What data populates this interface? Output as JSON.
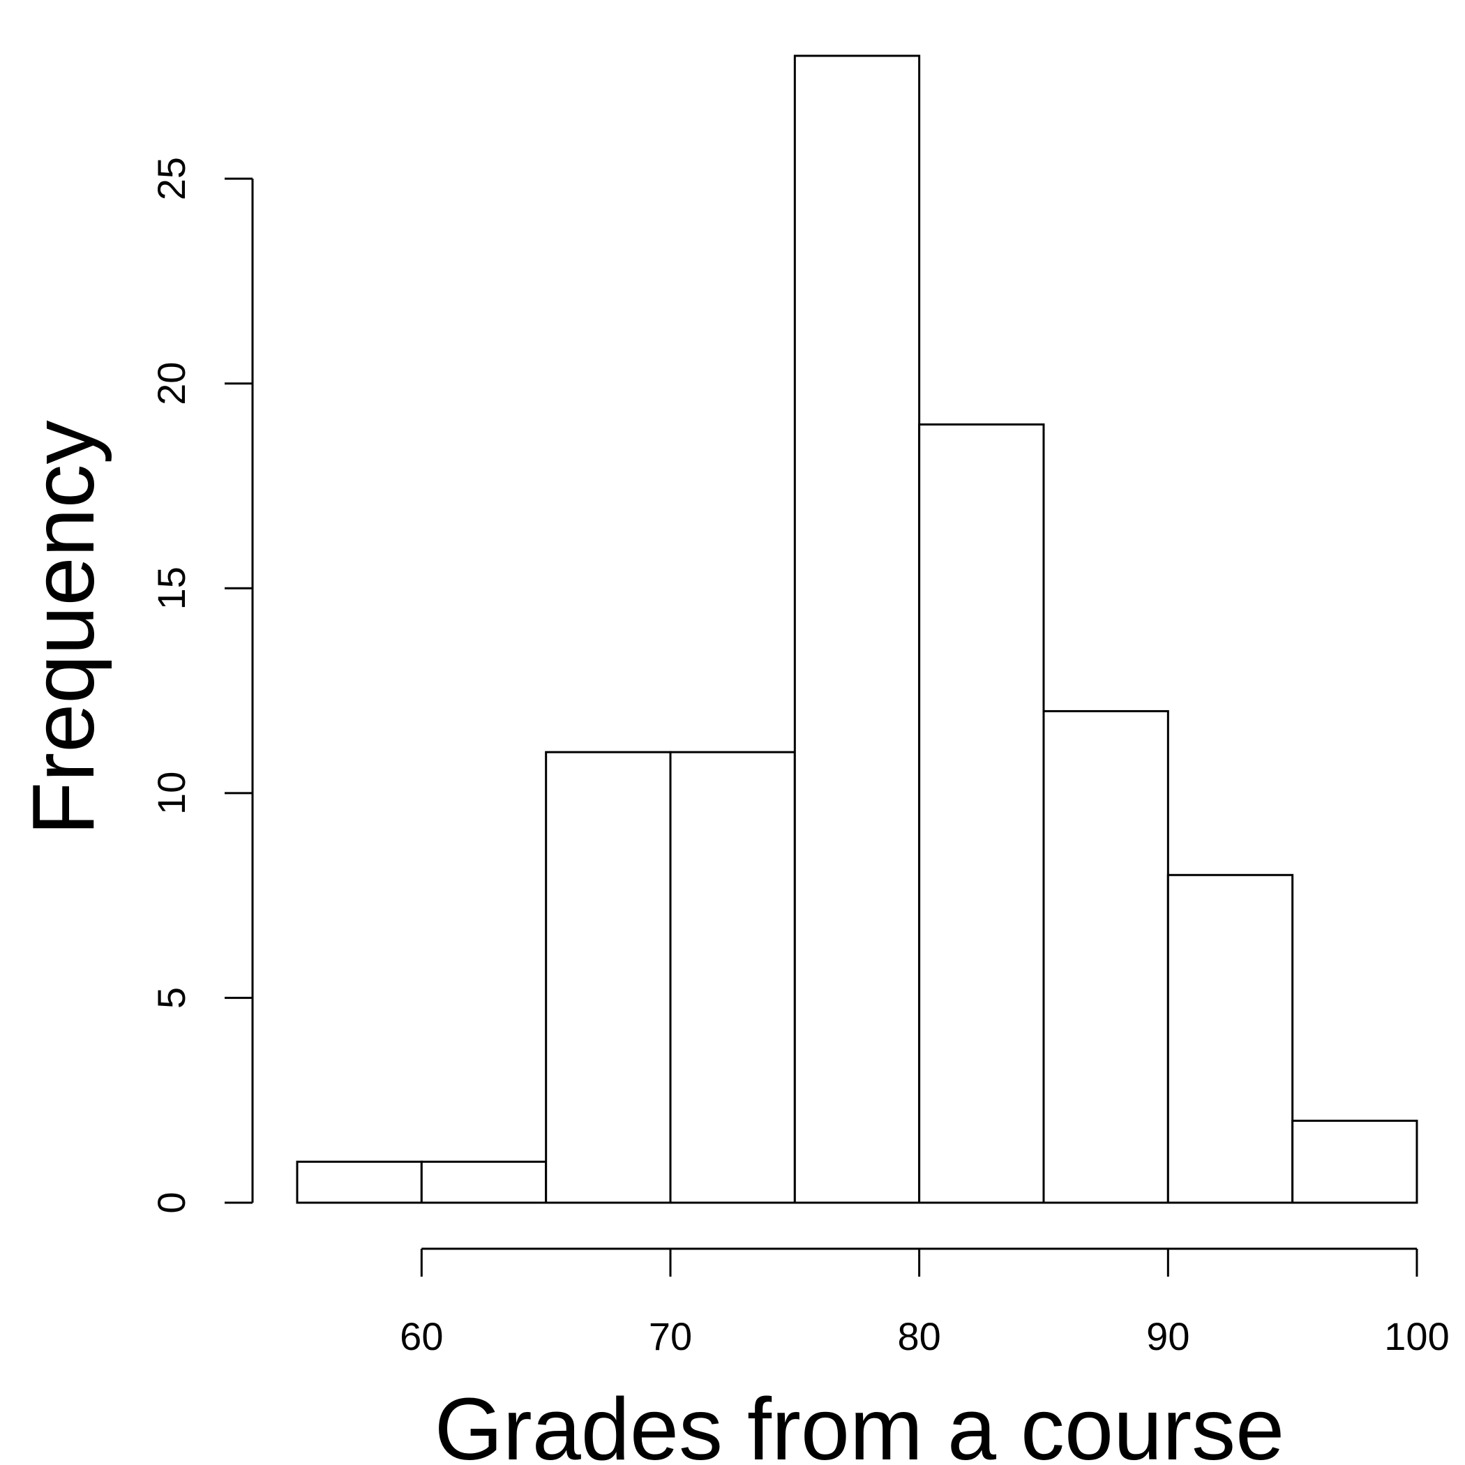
{
  "chart_data": {
    "type": "bar",
    "histogram": true,
    "bins": [
      {
        "from": 55,
        "to": 60,
        "count": 1
      },
      {
        "from": 60,
        "to": 65,
        "count": 1
      },
      {
        "from": 65,
        "to": 70,
        "count": 11
      },
      {
        "from": 70,
        "to": 75,
        "count": 11
      },
      {
        "from": 75,
        "to": 80,
        "count": 28
      },
      {
        "from": 80,
        "to": 85,
        "count": 19
      },
      {
        "from": 85,
        "to": 90,
        "count": 12
      },
      {
        "from": 90,
        "to": 95,
        "count": 8
      },
      {
        "from": 95,
        "to": 100,
        "count": 2
      }
    ],
    "title": "",
    "xlabel": "Grades from a course",
    "ylabel": "Frequency",
    "xlim": [
      55,
      100
    ],
    "ylim": [
      0,
      28
    ],
    "x_ticks": [
      60,
      70,
      80,
      90,
      100
    ],
    "x_tick_labels": [
      "60",
      "70",
      "80",
      "90",
      "100"
    ],
    "y_ticks": [
      0,
      5,
      10,
      15,
      20,
      25
    ],
    "y_tick_labels": [
      "0",
      "5",
      "10",
      "15",
      "20",
      "25"
    ],
    "grid": false,
    "legend": "none",
    "colors": {
      "bar_fill": "#ffffff",
      "bar_stroke": "#000000"
    }
  }
}
